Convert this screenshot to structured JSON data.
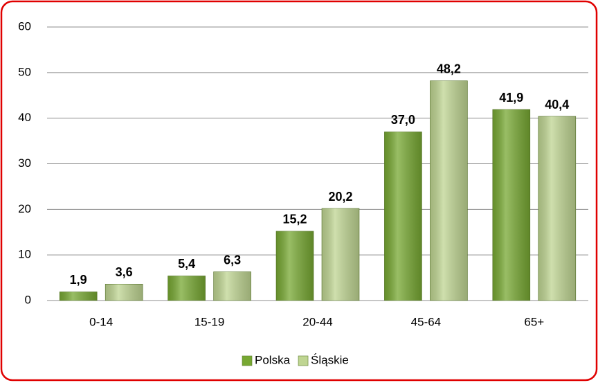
{
  "chart_data": {
    "type": "bar",
    "categories": [
      "0-14",
      "15-19",
      "20-44",
      "45-64",
      "65+"
    ],
    "series": [
      {
        "name": "Polska",
        "color": "#77a832",
        "values": [
          1.9,
          5.4,
          15.2,
          37.0,
          41.9
        ],
        "value_labels": [
          "1,9",
          "5,4",
          "15,2",
          "37,0",
          "41,9"
        ]
      },
      {
        "name": "Śląskie",
        "color": "#bfd592",
        "values": [
          3.6,
          6.3,
          20.2,
          48.2,
          40.4
        ],
        "value_labels": [
          "3,6",
          "6,3",
          "20,2",
          "48,2",
          "40,4"
        ]
      }
    ],
    "ylim": [
      0,
      60
    ],
    "yticks": [
      0,
      10,
      20,
      30,
      40,
      50,
      60
    ],
    "grid": true,
    "legend": "bottom"
  }
}
